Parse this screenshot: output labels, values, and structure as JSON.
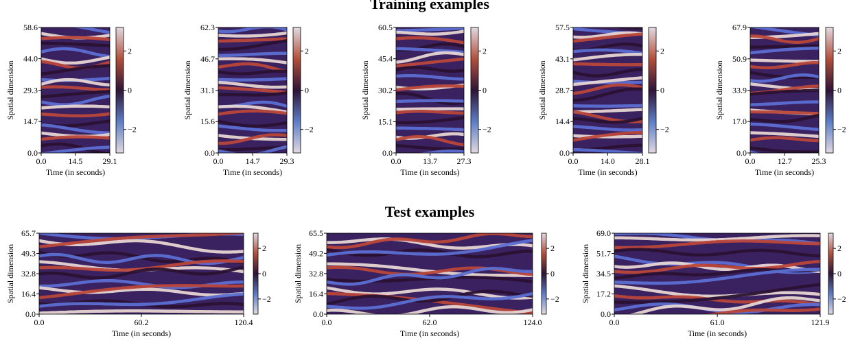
{
  "sections": [
    "Training examples",
    "Test examples"
  ],
  "chart_data": [
    {
      "type": "heatmap",
      "xlabel": "Time (in seconds)",
      "ylabel": "Spatial dimension",
      "xlim": [
        0,
        29.1
      ],
      "xticks": [
        {
          "value": 0,
          "label": "0.0"
        },
        14.5,
        29.1
      ],
      "ylim": [
        0,
        58.6
      ],
      "yticks": [
        {
          "value": 0,
          "label": "0.0"
        },
        14.7,
        29.3,
        {
          "value": 44,
          "label": "44.0"
        },
        58.6
      ],
      "clim": [
        -3.2,
        3.2
      ],
      "cticks": [
        {
          "value": -2,
          "label": "−2"
        },
        0,
        2
      ]
    },
    {
      "type": "heatmap",
      "xlabel": "Time (in seconds)",
      "ylabel": "Spatial dimension",
      "xlim": [
        0,
        29.3
      ],
      "xticks": [
        {
          "value": 0,
          "label": "0.0"
        },
        14.7,
        29.3
      ],
      "ylim": [
        0,
        62.3
      ],
      "yticks": [
        {
          "value": 0,
          "label": "0.0"
        },
        15.6,
        31.1,
        46.7,
        62.3
      ],
      "clim": [
        -3.2,
        3.2
      ],
      "cticks": [
        {
          "value": -2,
          "label": "−2"
        },
        0,
        2
      ]
    },
    {
      "type": "heatmap",
      "xlabel": "Time (in seconds)",
      "ylabel": "Spatial dimension",
      "xlim": [
        0,
        27.3
      ],
      "xticks": [
        {
          "value": 0,
          "label": "0.0"
        },
        13.7,
        27.3
      ],
      "ylim": [
        0,
        60.5
      ],
      "yticks": [
        {
          "value": 0,
          "label": "0.0"
        },
        15.1,
        30.2,
        45.4,
        60.5
      ],
      "clim": [
        -3.2,
        3.2
      ],
      "cticks": [
        {
          "value": -2,
          "label": "−2"
        },
        0,
        2
      ]
    },
    {
      "type": "heatmap",
      "xlabel": "Time (in seconds)",
      "ylabel": "Spatial dimension",
      "xlim": [
        0,
        28.1
      ],
      "xticks": [
        {
          "value": 0,
          "label": "0.0"
        },
        {
          "value": 14,
          "label": "14.0"
        },
        28.1
      ],
      "ylim": [
        0,
        57.5
      ],
      "yticks": [
        {
          "value": 0,
          "label": "0.0"
        },
        14.4,
        28.7,
        43.1,
        57.5
      ],
      "clim": [
        -3.2,
        3.2
      ],
      "cticks": [
        {
          "value": -2,
          "label": "−2"
        },
        0,
        2
      ]
    },
    {
      "type": "heatmap",
      "xlabel": "Time (in seconds)",
      "ylabel": "Spatial dimension",
      "xlim": [
        0,
        25.3
      ],
      "xticks": [
        {
          "value": 0,
          "label": "0.0"
        },
        12.7,
        25.3
      ],
      "ylim": [
        0,
        67.9
      ],
      "yticks": [
        {
          "value": 0,
          "label": "0.0"
        },
        {
          "value": 17,
          "label": "17.0"
        },
        33.9,
        50.9,
        67.9
      ],
      "clim": [
        -3.2,
        3.2
      ],
      "cticks": [
        {
          "value": -2,
          "label": "−2"
        },
        0,
        2
      ]
    },
    {
      "type": "heatmap",
      "xlabel": "Time (in seconds)",
      "ylabel": "Spatial dimension",
      "xlim": [
        0,
        120.4
      ],
      "xticks": [
        {
          "value": 0,
          "label": "0.0"
        },
        60.2,
        120.4
      ],
      "ylim": [
        0,
        65.7
      ],
      "yticks": [
        {
          "value": 0,
          "label": "0.0"
        },
        16.4,
        32.8,
        49.3,
        65.7
      ],
      "clim": [
        -3.2,
        3.2
      ],
      "cticks": [
        {
          "value": -2,
          "label": "−2"
        },
        0,
        2
      ]
    },
    {
      "type": "heatmap",
      "xlabel": "Time (in seconds)",
      "ylabel": "Spatial dimension",
      "xlim": [
        0,
        124
      ],
      "xticks": [
        {
          "value": 0,
          "label": "0.0"
        },
        {
          "value": 62,
          "label": "62.0"
        },
        {
          "value": 124,
          "label": "124.0"
        }
      ],
      "ylim": [
        0,
        65.5
      ],
      "yticks": [
        {
          "value": 0,
          "label": "0.0"
        },
        16.4,
        32.8,
        49.2,
        65.5
      ],
      "clim": [
        -3.2,
        3.2
      ],
      "cticks": [
        {
          "value": -2,
          "label": "−2"
        },
        0,
        2
      ]
    },
    {
      "type": "heatmap",
      "xlabel": "Time (in seconds)",
      "ylabel": "Spatial dimension",
      "xlim": [
        0,
        121.9
      ],
      "xticks": [
        {
          "value": 0,
          "label": "0.0"
        },
        {
          "value": 61,
          "label": "61.0"
        },
        121.9
      ],
      "ylim": [
        0,
        69
      ],
      "yticks": [
        {
          "value": 0,
          "label": "0.0"
        },
        17.2,
        34.5,
        51.7,
        {
          "value": 69,
          "label": "69.0"
        }
      ],
      "clim": [
        -3.2,
        3.2
      ],
      "cticks": [
        {
          "value": -2,
          "label": "−2"
        },
        0,
        2
      ]
    }
  ]
}
